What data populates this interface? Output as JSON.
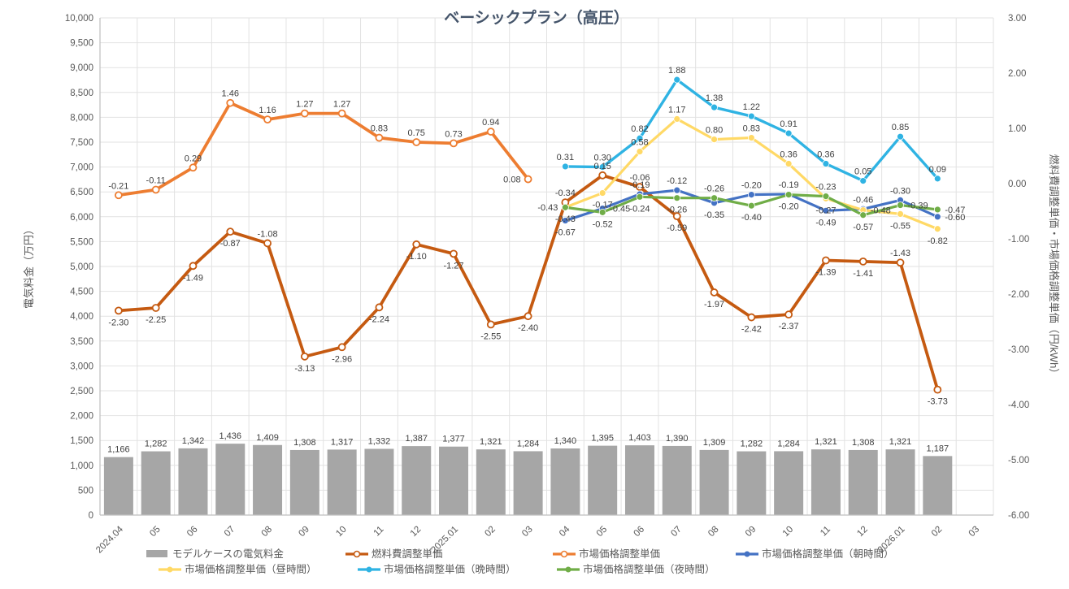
{
  "title": "ベーシックプラン（高圧）",
  "chart_data": {
    "type": "combo-bar-line",
    "categories": [
      "2024.04",
      "05",
      "06",
      "07",
      "08",
      "09",
      "10",
      "11",
      "12",
      "2025.01",
      "02",
      "03",
      "04",
      "05",
      "06",
      "07",
      "08",
      "09",
      "10",
      "11",
      "12",
      "2026.01",
      "02",
      "03"
    ],
    "left_axis": {
      "title": "電気料金（万円）",
      "min": 0,
      "max": 10000,
      "step": 500,
      "tick_labels": [
        "0",
        "500",
        "1,000",
        "1,500",
        "2,000",
        "2,500",
        "3,000",
        "3,500",
        "4,000",
        "4,500",
        "5,000",
        "5,500",
        "6,000",
        "6,500",
        "7,000",
        "7,500",
        "8,000",
        "8,500",
        "9,000",
        "9,500",
        "10,000"
      ]
    },
    "right_axis": {
      "title": "燃料費調整単価・市場価格調整単価（円/kWh）",
      "min": -6,
      "max": 3,
      "step": 1,
      "tick_labels": [
        "3.00",
        "2.00",
        "1.00",
        "0.00",
        "-1.00",
        "-2.00",
        "-3.00",
        "-4.00",
        "-5.00",
        "-6.00"
      ]
    },
    "grid": true,
    "bar_series": {
      "name": "モデルケースの電気料金",
      "color": "#A6A6A6",
      "axis": "left",
      "values": [
        1166,
        1282,
        1342,
        1436,
        1409,
        1308,
        1317,
        1332,
        1387,
        1377,
        1321,
        1284,
        1340,
        1395,
        1403,
        1390,
        1309,
        1282,
        1284,
        1321,
        1308,
        1321,
        1187
      ]
    },
    "line_series": [
      {
        "name": "燃料費調整単価",
        "color": "#C55A11",
        "marker": "open-circle",
        "width": 3.8,
        "start_index": 0,
        "values": [
          -2.3,
          -2.25,
          -1.49,
          -0.87,
          -1.08,
          -3.13,
          -2.96,
          -2.24,
          -1.1,
          -1.27,
          -2.55,
          -2.4,
          -0.34,
          0.15,
          -0.06,
          -0.59,
          -1.97,
          -2.42,
          -2.37,
          -1.39,
          -1.41,
          -1.43,
          -3.73
        ],
        "label_pos": [
          "b",
          "b",
          "b",
          "b",
          "a",
          "b",
          "b",
          "b",
          "b",
          "b",
          "b",
          "b",
          "a",
          "a",
          "a",
          "b",
          "b",
          "b",
          "b",
          "b",
          "b",
          "a",
          "b"
        ]
      },
      {
        "name": "市場価格調整単価",
        "color": "#ED7D31",
        "marker": "open-circle",
        "width": 3.8,
        "start_index": 0,
        "values": [
          -0.21,
          -0.11,
          0.29,
          1.46,
          1.16,
          1.27,
          1.27,
          0.83,
          0.75,
          0.73,
          0.94,
          0.08
        ],
        "label_pos": [
          "a",
          "a",
          "a",
          "a",
          "a",
          "a",
          "a",
          "a",
          "a",
          "a",
          "a",
          "l"
        ]
      },
      {
        "name": "市場価格調整単価（朝時間）",
        "color": "#4472C4",
        "marker": "circle",
        "width": 3.2,
        "start_index": 12,
        "values": [
          -0.67,
          -0.45,
          -0.19,
          -0.12,
          -0.35,
          -0.2,
          -0.19,
          -0.49,
          -0.46,
          -0.3,
          -0.6
        ],
        "label_pos": [
          "b",
          "r",
          "a",
          "a",
          "b",
          "a",
          "a",
          "b",
          "a",
          "a",
          "r"
        ]
      },
      {
        "name": "市場価格調整単価（昼時間）",
        "color": "#FFD966",
        "marker": "circle",
        "width": 3.2,
        "start_index": 12,
        "values": [
          -0.43,
          -0.17,
          0.58,
          1.17,
          0.8,
          0.83,
          0.36,
          -0.27,
          -0.48,
          -0.55,
          -0.82
        ],
        "label_pos": [
          "l",
          "b",
          "a",
          "a",
          "a",
          "a",
          "a",
          "b",
          "r",
          "b",
          "b"
        ]
      },
      {
        "name": "市場価格調整単価（晩時間）",
        "color": "#2FB3E3",
        "marker": "circle",
        "width": 3.4,
        "start_index": 12,
        "values": [
          0.31,
          0.3,
          0.82,
          1.88,
          1.38,
          1.22,
          0.91,
          0.36,
          0.05,
          0.85,
          0.09
        ],
        "label_pos": [
          "a",
          "a",
          "a",
          "a",
          "a",
          "a",
          "a",
          "a",
          "a",
          "a",
          "a"
        ]
      },
      {
        "name": "市場価格調整単価（夜時間）",
        "color": "#70AD47",
        "marker": "circle",
        "width": 3.2,
        "start_index": 12,
        "values": [
          -0.43,
          -0.52,
          -0.24,
          -0.26,
          -0.26,
          -0.4,
          -0.2,
          -0.23,
          -0.57,
          -0.39,
          -0.47
        ],
        "label_pos": [
          "b",
          "b",
          "b",
          "b",
          "a",
          "b",
          "b",
          "a",
          "b",
          "r",
          "r"
        ]
      }
    ],
    "legend": {
      "rows": [
        [
          "モデルケースの電気料金",
          "燃料費調整単価",
          "市場価格調整単価",
          "市場価格調整単価（朝時間）"
        ],
        [
          "市場価格調整単価（昼時間）",
          "市場価格調整単価（晩時間）",
          "市場価格調整単価（夜時間）"
        ]
      ]
    },
    "colors": {
      "gridline": "#E2E2E2",
      "axis_line": "#BFBFBF",
      "title": "#44546A",
      "tick": "#595959",
      "data_label": "#404040"
    }
  }
}
